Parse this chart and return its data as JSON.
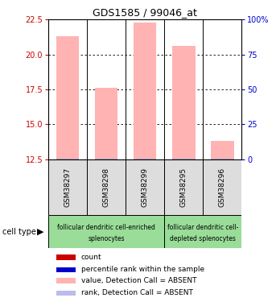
{
  "title": "GDS1585 / 99046_at",
  "samples": [
    "GSM38297",
    "GSM38298",
    "GSM38299",
    "GSM38295",
    "GSM38296"
  ],
  "bar_values": [
    21.3,
    17.6,
    22.3,
    20.6,
    13.8
  ],
  "rank_values": [
    12.6,
    12.6,
    12.6,
    12.6,
    12.6
  ],
  "bar_color_pink": "#FFB3B3",
  "rank_color_blue": "#AAAACC",
  "ylim_left": [
    12.5,
    22.5
  ],
  "yticks_left": [
    12.5,
    15.0,
    17.5,
    20.0,
    22.5
  ],
  "ylim_right": [
    0,
    100
  ],
  "yticks_right": [
    0,
    25,
    50,
    75,
    100
  ],
  "ytick_labels_right": [
    "0",
    "25",
    "50",
    "75",
    "100%"
  ],
  "left_tick_color": "#CC0000",
  "right_tick_color": "#0000CC",
  "group1_label_line1": "follicular dendritic cell-enriched",
  "group1_label_line2": "splenocytes",
  "group2_label_line1": "follicular dendritic cell-",
  "group2_label_line2": "depleted splenocytes",
  "group1_indices": [
    0,
    1,
    2
  ],
  "group2_indices": [
    3,
    4
  ],
  "group_color": "#99DD99",
  "cell_type_label": "cell type",
  "legend_items": [
    {
      "color": "#CC0000",
      "label": "count"
    },
    {
      "color": "#0000CC",
      "label": "percentile rank within the sample"
    },
    {
      "color": "#FFB3B3",
      "label": "value, Detection Call = ABSENT"
    },
    {
      "color": "#BBBBEE",
      "label": "rank, Detection Call = ABSENT"
    }
  ],
  "bar_width": 0.6,
  "sample_box_color": "#DDDDDD",
  "n_samples": 5
}
